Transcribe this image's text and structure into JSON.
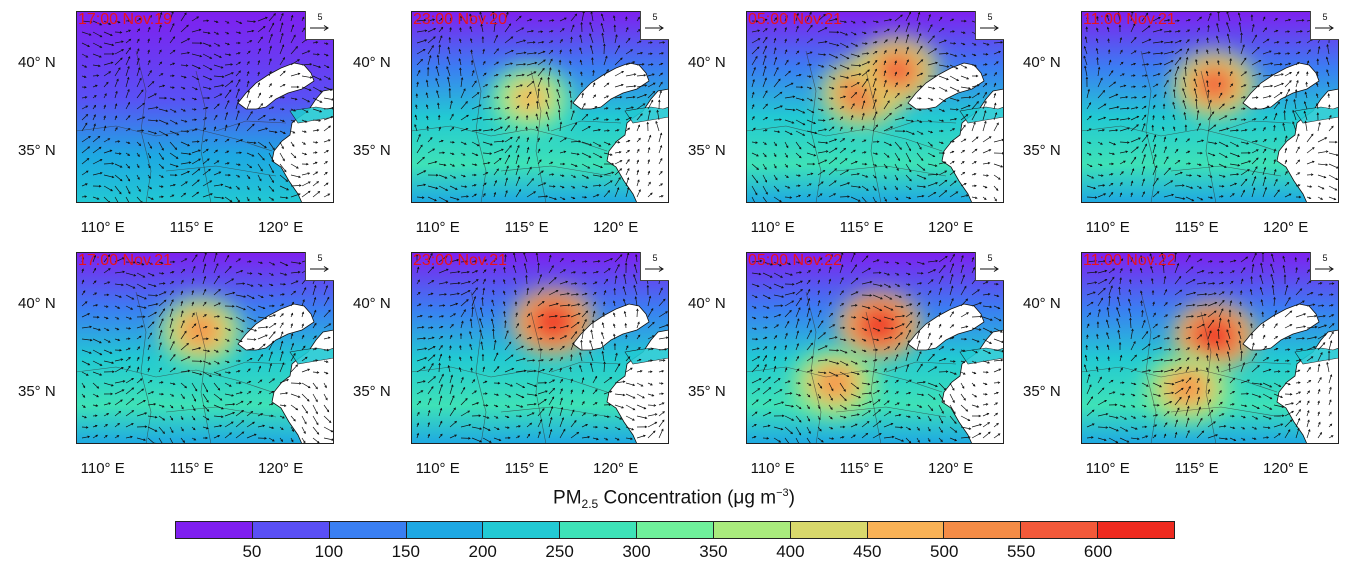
{
  "panels": [
    {
      "title": "17:00 Nov.19",
      "hotspots": []
    },
    {
      "title": "23:00 Nov.20",
      "hotspots": [
        {
          "lon": 115.2,
          "lat": 38.0,
          "value": 480
        }
      ]
    },
    {
      "title": "05:00 Nov.21",
      "hotspots": [
        {
          "lon": 115.0,
          "lat": 38.3,
          "value": 580
        },
        {
          "lon": 117.0,
          "lat": 39.6,
          "value": 560
        }
      ]
    },
    {
      "title": "11:00 Nov.21",
      "hotspots": [
        {
          "lon": 116.0,
          "lat": 38.8,
          "value": 570
        }
      ]
    },
    {
      "title": "17:00 Nov.21",
      "hotspots": [
        {
          "lon": 115.5,
          "lat": 38.5,
          "value": 500
        }
      ]
    },
    {
      "title": "23:00 Nov.21",
      "hotspots": [
        {
          "lon": 116.5,
          "lat": 39.0,
          "value": 620
        }
      ]
    },
    {
      "title": "05:00 Nov.22",
      "hotspots": [
        {
          "lon": 116.0,
          "lat": 38.8,
          "value": 620
        },
        {
          "lon": 113.5,
          "lat": 35.5,
          "value": 520
        }
      ]
    },
    {
      "title": "11:00 Nov.22",
      "hotspots": [
        {
          "lon": 116.0,
          "lat": 38.2,
          "value": 600
        },
        {
          "lon": 114.5,
          "lat": 35.2,
          "value": 500
        }
      ]
    }
  ],
  "lat_labels": [
    "40° N",
    "35° N"
  ],
  "lat_values": [
    40,
    35
  ],
  "lon_labels": [
    "110° E",
    "115° E",
    "120° E"
  ],
  "lon_values": [
    110,
    115,
    120
  ],
  "extent": {
    "lon": [
      108.5,
      123
    ],
    "lat": [
      32,
      43
    ]
  },
  "reference_vector": "5",
  "colorbar": {
    "title_main": "PM",
    "title_sub": "2.5",
    "title_rest": " Concentration (",
    "title_mu": "μ",
    "title_unit": "g  m",
    "title_exp": "−3",
    "title_close": ")",
    "ticks": [
      "50",
      "100",
      "150",
      "200",
      "250",
      "300",
      "350",
      "400",
      "450",
      "500",
      "550",
      "600"
    ],
    "colors": [
      "#7f1fef",
      "#5a4ff5",
      "#3a7ff2",
      "#1ea8e3",
      "#22c9d3",
      "#3ee2b7",
      "#6ff09b",
      "#a9ea7d",
      "#d8d86c",
      "#f9b256",
      "#f58c46",
      "#f2593a",
      "#ee2a1f"
    ]
  }
}
